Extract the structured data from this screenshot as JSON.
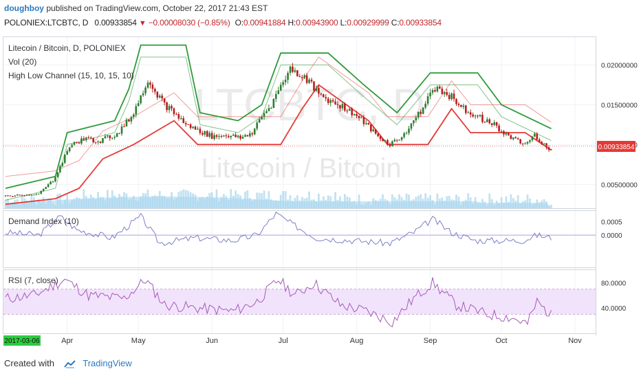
{
  "header": {
    "user": "doughboy",
    "published_on": "published on TradingView.com, October 22, 2017 21:43 EST",
    "symbol": "POLONIEX:LTCBTC, D",
    "last": "0.00933854",
    "change": "−0.00008030 (−0.85%)",
    "o_label": "O:",
    "o_value": "0.00941884",
    "h_label": "H:",
    "h_value": "0.00943900",
    "l_label": "L:",
    "l_value": "0.00929999",
    "c_label": "C:",
    "c_value": "0.00933854"
  },
  "main_legend": {
    "title": "Litecoin / Bitcoin, D, POLONIEX",
    "vol": "Vol (20)",
    "channel": "High Low Channel (15, 10, 15, 10)"
  },
  "watermark": {
    "ticker": "LTCBTC, D",
    "name": "Litecoin / Bitcoin"
  },
  "demand_legend": "Demand Index (10)",
  "rsi_legend": "RSI (7, close)",
  "price_tag": "0.00933854",
  "start_date_tag": "2017-03-06",
  "footer": {
    "created_with": "Created with",
    "brand": "TradingView"
  },
  "colors": {
    "up": "#2e7d32",
    "down": "#b71c1c",
    "channel_high": "#2e9a3a",
    "channel_low": "#e53935",
    "volume": "#8ecae6",
    "demand": "#7b7fc4",
    "rsi": "#a65ab8",
    "rsi_band": "#f1e3fb",
    "price_tag": "#e53935"
  },
  "chart_data": [
    {
      "type": "candlestick",
      "title": "Litecoin / Bitcoin, D, POLONIEX",
      "x_ticks": [
        "Apr",
        "May",
        "Jun",
        "Jul",
        "Aug",
        "Sep",
        "Oct",
        "Nov"
      ],
      "y_ticks": [
        "0.02000000",
        "0.01500000",
        "0.01000000",
        "0.00500000"
      ],
      "ylim": [
        0.002,
        0.0235
      ],
      "scale": "linear",
      "close_path": [
        [
          "2017-03-06",
          0.0035
        ],
        [
          "2017-03-20",
          0.0038
        ],
        [
          "2017-03-26",
          0.0055
        ],
        [
          "2017-03-29",
          0.0072
        ],
        [
          "2017-04-02",
          0.0098
        ],
        [
          "2017-04-08",
          0.0107
        ],
        [
          "2017-04-15",
          0.0105
        ],
        [
          "2017-04-22",
          0.0113
        ],
        [
          "2017-04-28",
          0.0135
        ],
        [
          "2017-05-02",
          0.016
        ],
        [
          "2017-05-05",
          0.0183
        ],
        [
          "2017-05-08",
          0.0168
        ],
        [
          "2017-05-12",
          0.015
        ],
        [
          "2017-05-16",
          0.014
        ],
        [
          "2017-05-21",
          0.0125
        ],
        [
          "2017-05-26",
          0.0118
        ],
        [
          "2017-06-01",
          0.011
        ],
        [
          "2017-06-07",
          0.0112
        ],
        [
          "2017-06-13",
          0.0108
        ],
        [
          "2017-06-18",
          0.0115
        ],
        [
          "2017-06-22",
          0.0135
        ],
        [
          "2017-06-26",
          0.015
        ],
        [
          "2017-07-01",
          0.018
        ],
        [
          "2017-07-04",
          0.0195
        ],
        [
          "2017-07-08",
          0.0188
        ],
        [
          "2017-07-12",
          0.018
        ],
        [
          "2017-07-16",
          0.0162
        ],
        [
          "2017-07-21",
          0.0155
        ],
        [
          "2017-07-26",
          0.0148
        ],
        [
          "2017-07-31",
          0.0138
        ],
        [
          "2017-08-05",
          0.0125
        ],
        [
          "2017-08-10",
          0.011
        ],
        [
          "2017-08-15",
          0.01
        ],
        [
          "2017-08-20",
          0.011
        ],
        [
          "2017-08-25",
          0.013
        ],
        [
          "2017-08-30",
          0.015
        ],
        [
          "2017-09-02",
          0.0172
        ],
        [
          "2017-09-06",
          0.0168
        ],
        [
          "2017-09-10",
          0.016
        ],
        [
          "2017-09-14",
          0.0148
        ],
        [
          "2017-09-18",
          0.014
        ],
        [
          "2017-09-23",
          0.0132
        ],
        [
          "2017-09-28",
          0.0125
        ],
        [
          "2017-10-03",
          0.0112
        ],
        [
          "2017-10-07",
          0.0105
        ],
        [
          "2017-10-11",
          0.01
        ],
        [
          "2017-10-15",
          0.0112
        ],
        [
          "2017-10-19",
          0.01
        ],
        [
          "2017-10-22",
          0.00933854
        ]
      ],
      "channel_high_path": [
        [
          "2017-03-06",
          0.0045
        ],
        [
          "2017-03-27",
          0.006
        ],
        [
          "2017-04-01",
          0.0115
        ],
        [
          "2017-04-21",
          0.013
        ],
        [
          "2017-04-27",
          0.017
        ],
        [
          "2017-05-02",
          0.0225
        ],
        [
          "2017-05-21",
          0.0225
        ],
        [
          "2017-05-27",
          0.014
        ],
        [
          "2017-06-12",
          0.013
        ],
        [
          "2017-06-22",
          0.015
        ],
        [
          "2017-06-30",
          0.0215
        ],
        [
          "2017-07-20",
          0.0215
        ],
        [
          "2017-08-04",
          0.0175
        ],
        [
          "2017-08-18",
          0.014
        ],
        [
          "2017-09-01",
          0.019
        ],
        [
          "2017-09-21",
          0.019
        ],
        [
          "2017-10-01",
          0.015
        ],
        [
          "2017-10-22",
          0.012
        ]
      ],
      "channel_low_path": [
        [
          "2017-03-06",
          0.0025
        ],
        [
          "2017-03-27",
          0.0032
        ],
        [
          "2017-04-06",
          0.0045
        ],
        [
          "2017-04-16",
          0.0082
        ],
        [
          "2017-04-29",
          0.01
        ],
        [
          "2017-05-16",
          0.013
        ],
        [
          "2017-05-26",
          0.01
        ],
        [
          "2017-06-30",
          0.01
        ],
        [
          "2017-07-09",
          0.0145
        ],
        [
          "2017-07-16",
          0.0175
        ],
        [
          "2017-08-06",
          0.013
        ],
        [
          "2017-08-14",
          0.01
        ],
        [
          "2017-08-31",
          0.01
        ],
        [
          "2017-09-10",
          0.0145
        ],
        [
          "2017-09-18",
          0.0115
        ],
        [
          "2017-10-11",
          0.0115
        ],
        [
          "2017-10-22",
          0.0093
        ]
      ]
    },
    {
      "type": "line",
      "title": "Demand Index (10)",
      "y_ticks": [
        "0.0005",
        "0.0000"
      ],
      "ylim": [
        -0.0012,
        0.0009
      ],
      "path": [
        [
          "2017-03-06",
          0.0001
        ],
        [
          "2017-03-20",
          0.0
        ],
        [
          "2017-03-29",
          0.0007
        ],
        [
          "2017-04-05",
          0.0002
        ],
        [
          "2017-04-20",
          -0.0001
        ],
        [
          "2017-05-02",
          0.0007
        ],
        [
          "2017-05-10",
          -0.0003
        ],
        [
          "2017-05-25",
          -0.0001
        ],
        [
          "2017-06-10",
          -0.0002
        ],
        [
          "2017-06-20",
          0.0
        ],
        [
          "2017-06-28",
          0.0008
        ],
        [
          "2017-07-05",
          0.0004
        ],
        [
          "2017-07-15",
          -0.0001
        ],
        [
          "2017-07-30",
          -0.0002
        ],
        [
          "2017-08-15",
          -0.0003
        ],
        [
          "2017-08-25",
          0.0001
        ],
        [
          "2017-09-02",
          0.0006
        ],
        [
          "2017-09-10",
          0.0001
        ],
        [
          "2017-09-20",
          -0.0002
        ],
        [
          "2017-10-10",
          -0.0002
        ],
        [
          "2017-10-16",
          0.0
        ],
        [
          "2017-10-22",
          -0.0001
        ]
      ]
    },
    {
      "type": "line",
      "title": "RSI (7, close)",
      "y_ticks": [
        "80.0000",
        "40.0000"
      ],
      "ylim": [
        0,
        100
      ],
      "band": [
        30,
        70
      ],
      "path": [
        [
          "2017-03-06",
          55
        ],
        [
          "2017-03-18",
          60
        ],
        [
          "2017-03-31",
          85
        ],
        [
          "2017-04-10",
          60
        ],
        [
          "2017-04-25",
          55
        ],
        [
          "2017-05-04",
          85
        ],
        [
          "2017-05-12",
          45
        ],
        [
          "2017-05-25",
          40
        ],
        [
          "2017-06-10",
          35
        ],
        [
          "2017-06-20",
          50
        ],
        [
          "2017-06-29",
          85
        ],
        [
          "2017-07-06",
          60
        ],
        [
          "2017-07-14",
          80
        ],
        [
          "2017-07-25",
          45
        ],
        [
          "2017-08-05",
          35
        ],
        [
          "2017-08-16",
          18
        ],
        [
          "2017-08-25",
          55
        ],
        [
          "2017-09-02",
          80
        ],
        [
          "2017-09-12",
          45
        ],
        [
          "2017-09-25",
          30
        ],
        [
          "2017-10-05",
          25
        ],
        [
          "2017-10-12",
          15
        ],
        [
          "2017-10-16",
          50
        ],
        [
          "2017-10-22",
          28
        ]
      ]
    }
  ]
}
